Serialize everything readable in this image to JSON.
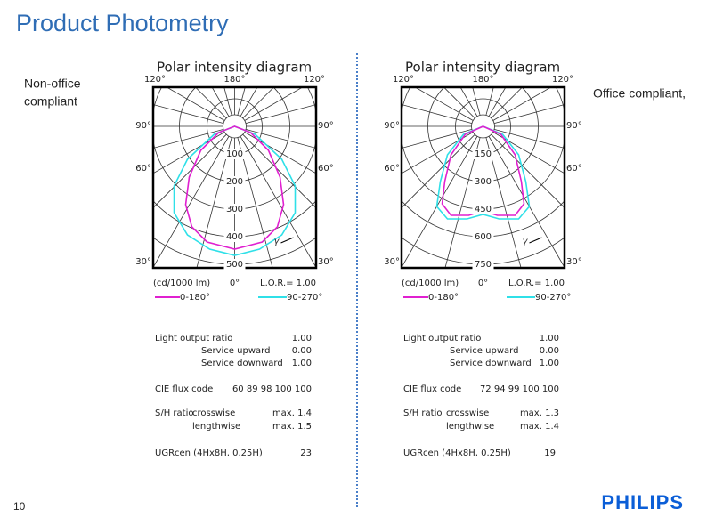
{
  "title": "Product Photometry",
  "page_number": "10",
  "logo": "PHILIPS",
  "left": {
    "note": [
      "Non-office",
      "compliant"
    ],
    "diagram": {
      "title": "Polar intensity diagram",
      "top_angles": [
        "120°",
        "180°",
        "120°"
      ],
      "side_angles": [
        "90°",
        "60°",
        "30°"
      ],
      "radial_labels": [
        "100",
        "200",
        "300",
        "400",
        "500"
      ],
      "gamma": "γ",
      "units": "(cd/1000 lm)",
      "zero": "0°",
      "lor": "L.O.R.= 1.00",
      "legend": [
        "0-180°",
        "90-270°"
      ]
    },
    "table": {
      "light_output": {
        "label": "Light output ratio",
        "value": "1.00"
      },
      "service_upward": {
        "label": "Service upward",
        "value": "0.00"
      },
      "service_downward": {
        "label": "Service downward",
        "value": "1.00"
      },
      "cie": {
        "label": "CIE flux code",
        "value": "60 89 98 100 100"
      },
      "sh": {
        "label": "S/H ratio",
        "crosswise": {
          "label": "crosswise",
          "value": "max. 1.4"
        },
        "lengthwise": {
          "label": "lengthwise",
          "value": "max. 1.5"
        }
      },
      "ugr": {
        "label": "UGRcen (4Hx8H, 0.25H)",
        "value": "23"
      }
    }
  },
  "right": {
    "note": [
      "Office compliant,"
    ],
    "diagram": {
      "title": "Polar intensity diagram",
      "top_angles": [
        "120°",
        "180°",
        "120°"
      ],
      "side_angles": [
        "90°",
        "60°",
        "30°"
      ],
      "radial_labels": [
        "150",
        "300",
        "450",
        "600",
        "750"
      ],
      "gamma": "γ",
      "units": "(cd/1000 lm)",
      "zero": "0°",
      "lor": "L.O.R.= 1.00",
      "legend": [
        "0-180°",
        "90-270°"
      ]
    },
    "table": {
      "light_output": {
        "label": "Light output ratio",
        "value": "1.00"
      },
      "service_upward": {
        "label": "Service upward",
        "value": "0.00"
      },
      "service_downward": {
        "label": "Service downward",
        "value": "1.00"
      },
      "cie": {
        "label": "CIE flux code",
        "value": "72 94 99 100 100"
      },
      "sh": {
        "label": "S/H ratio",
        "crosswise": {
          "label": "crosswise",
          "value": "max. 1.3"
        },
        "lengthwise": {
          "label": "lengthwise",
          "value": "max. 1.4"
        }
      },
      "ugr": {
        "label": "UGRcen (4Hx8H, 0.25H)",
        "value": "19"
      }
    }
  }
}
